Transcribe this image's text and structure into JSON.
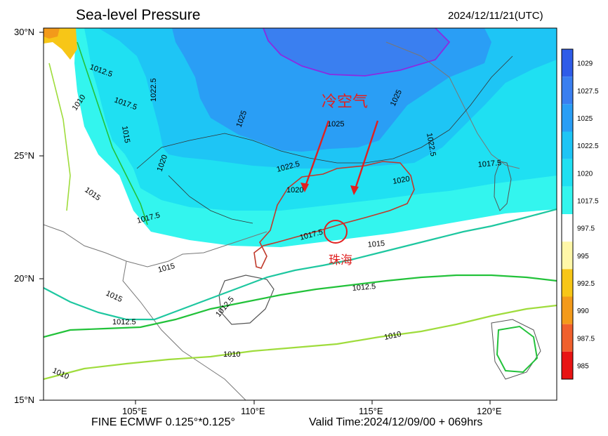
{
  "header": {
    "title": "Sea-level Pressure",
    "datetime": "2024/12/11/21(UTC)"
  },
  "footer": {
    "model": "FINE ECMWF 0.125°*0.125°",
    "valid": "Valid Time:2024/12/09/00 + 069hrs"
  },
  "axes": {
    "lat_labels": [
      "30°N",
      "25°N",
      "20°N",
      "15°N"
    ],
    "lon_labels": [
      "105°E",
      "110°E",
      "115°E",
      "120°E"
    ]
  },
  "contours": {
    "labels": [
      "1012.5",
      "1010",
      "1017.5",
      "1015",
      "1022.5",
      "1020",
      "1025",
      "1025",
      "1025",
      "1022.5",
      "1022.5",
      "1020",
      "1020",
      "1017.5",
      "1017.5",
      "1015",
      "1015",
      "1015",
      "1015",
      "1012.5",
      "1012.5",
      "1012.5",
      "1010",
      "1010",
      "1010",
      "1017.5"
    ]
  },
  "annotations": {
    "cold_air": "冷空气",
    "city": "珠海"
  },
  "colorbar": {
    "labels": [
      "1029",
      "1027.5",
      "1025",
      "1022.5",
      "1020",
      "1017.5",
      "997.5",
      "995",
      "992.5",
      "990",
      "987.5",
      "985"
    ],
    "colors": [
      "#2f5ce8",
      "#3a7ff0",
      "#2a9ef5",
      "#1ec5f5",
      "#1fe0f2",
      "#33f5ee",
      "#ffffff",
      "#fff7a8",
      "#f7c617",
      "#f39a1a",
      "#f0602d",
      "#e81414"
    ]
  }
}
